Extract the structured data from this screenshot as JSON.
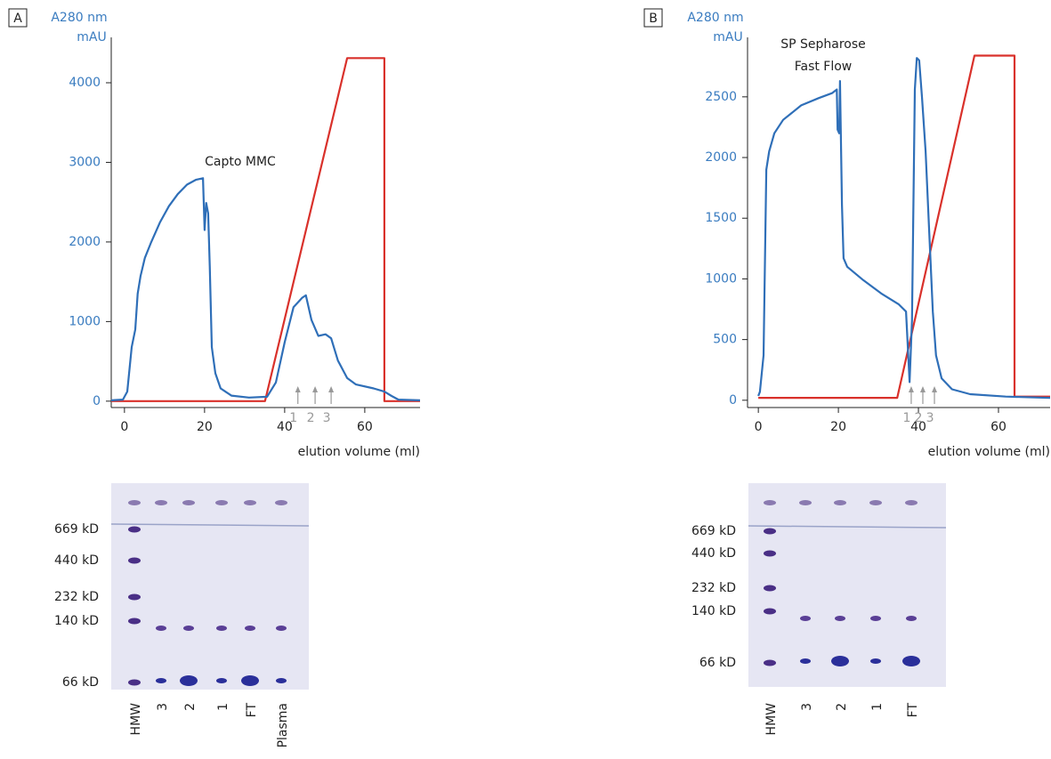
{
  "chart_data": [
    {
      "type": "line",
      "panel": "A",
      "ylabel": "A280 nm",
      "yunit": "mAU",
      "xlabel": "elution volume (ml)",
      "annotation": "Capto MMC",
      "xlim": [
        -3.3,
        73.8
      ],
      "ylim": [
        -80,
        4570
      ],
      "xticks": [
        0,
        20,
        40,
        60
      ],
      "yticks": [
        0,
        1000,
        2000,
        3000,
        4000
      ],
      "series": [
        {
          "color": "#2f6fb8",
          "x": [
            -3.3,
            -0.4,
            0.7,
            1.8,
            2.7,
            3.3,
            4,
            5.1,
            6.7,
            8.9,
            11.1,
            13.3,
            15.6,
            17.8,
            19.6,
            20,
            20.4,
            20.9,
            21.3,
            21.8,
            22.7,
            24,
            26.7,
            31.1,
            35.6,
            37.8,
            40,
            42.2,
            44.4,
            45.3,
            46.7,
            48.4,
            50.2,
            51.6,
            53.3,
            55.6,
            57.8,
            62.2,
            64.9,
            66.7,
            68.4,
            73.8
          ],
          "values": [
            10,
            20,
            120,
            680,
            900,
            1350,
            1570,
            1800,
            2000,
            2250,
            2450,
            2600,
            2720,
            2780,
            2800,
            2150,
            2490,
            2360,
            1700,
            680,
            350,
            160,
            70,
            45,
            55,
            235,
            740,
            1180,
            1300,
            1330,
            1020,
            820,
            840,
            790,
            510,
            290,
            210,
            160,
            120,
            65,
            20,
            10
          ]
        },
        {
          "color": "#d9312b",
          "x": [
            -3.3,
            35.1,
            55.6,
            64.9,
            64.9,
            73.8
          ],
          "values": [
            0,
            0,
            4310,
            4310,
            0,
            0
          ]
        }
      ],
      "arrows": [
        {
          "x": 43.3,
          "label": "1"
        },
        {
          "x": 47.6,
          "label": "2"
        },
        {
          "x": 51.6,
          "label": "3"
        }
      ],
      "gel": {
        "markers": [
          "669 kD",
          "440 kD",
          "232 kD",
          "140 kD",
          "66 kD"
        ],
        "lanes": [
          "HMW",
          "3",
          "2",
          "1",
          "FT",
          "Plasma"
        ]
      }
    },
    {
      "type": "line",
      "panel": "B",
      "ylabel": "A280 nm",
      "yunit": "mAU",
      "xlabel": "elution volume (ml)",
      "annotation": [
        "SP Sepharose",
        "Fast Flow"
      ],
      "xlim": [
        -2.7,
        72.9
      ],
      "ylim": [
        -60,
        2990
      ],
      "xticks": [
        0,
        20,
        40,
        60
      ],
      "yticks": [
        0,
        500,
        1000,
        1500,
        2000,
        2500
      ],
      "series": [
        {
          "color": "#2f6fb8",
          "x": [
            0,
            0.4,
            1.3,
            2,
            2.7,
            4,
            6.2,
            10.7,
            15.1,
            18.4,
            19.6,
            19.8,
            20.2,
            20.4,
            20.9,
            21.3,
            22.2,
            26.2,
            30.7,
            35.1,
            36.9,
            37.8,
            38.4,
            39.1,
            39.6,
            40.2,
            40.9,
            41.8,
            42.7,
            43.6,
            44.4,
            45.8,
            48.4,
            52.9,
            61.8,
            72.9
          ],
          "values": [
            35,
            70,
            370,
            1900,
            2050,
            2200,
            2310,
            2430,
            2490,
            2530,
            2560,
            2230,
            2200,
            2630,
            1610,
            1170,
            1100,
            990,
            880,
            790,
            730,
            150,
            660,
            2560,
            2820,
            2800,
            2490,
            2050,
            1380,
            730,
            370,
            180,
            90,
            50,
            30,
            20
          ]
        },
        {
          "color": "#d9312b",
          "x": [
            0,
            34.7,
            54,
            64,
            64,
            72.9
          ],
          "values": [
            20,
            20,
            2840,
            2840,
            30,
            30
          ]
        }
      ],
      "arrows": [
        {
          "x": 38.2,
          "label": "1"
        },
        {
          "x": 41.1,
          "label": "2"
        },
        {
          "x": 44,
          "label": "3"
        }
      ],
      "gel": {
        "markers": [
          "669 kD",
          "440 kD",
          "232 kD",
          "140 kD",
          "66 kD"
        ],
        "lanes": [
          "HMW",
          "3",
          "2",
          "1",
          "FT"
        ]
      }
    }
  ]
}
